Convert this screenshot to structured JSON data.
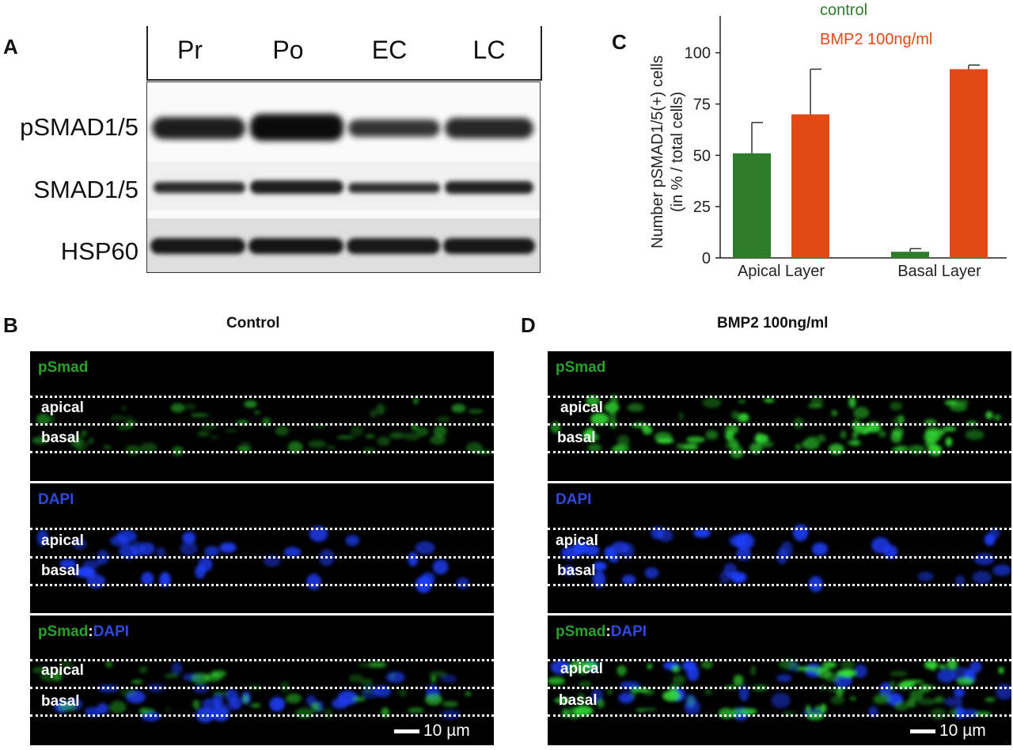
{
  "panels": {
    "a": {
      "letter": "A",
      "lanes": [
        "Pr",
        "Po",
        "EC",
        "LC"
      ],
      "rows": [
        "pSMAD1/5",
        "SMAD1/5",
        "HSP60"
      ]
    },
    "b": {
      "letter": "B",
      "title": "Control"
    },
    "c": {
      "letter": "C"
    },
    "d": {
      "letter": "D",
      "title": "BMP2 100ng/ml"
    }
  },
  "micro_labels": {
    "psmad": "pSmad",
    "dapi": "DAPI",
    "colon": ":",
    "apical": "apical",
    "basal": "basal",
    "scale": "10 µm"
  },
  "colors": {
    "control": "#2e7d2b",
    "bmp2": "#e04a14",
    "psmad_green": "#2aa12a",
    "dapi_blue": "#2f49e0"
  },
  "chart_data": {
    "type": "bar",
    "categories": [
      "Apical Layer",
      "Basal Layer"
    ],
    "series": [
      {
        "name": "control",
        "values": [
          51,
          3
        ],
        "errors": [
          15,
          1.5
        ],
        "color": "#2e7d2b"
      },
      {
        "name": "BMP2 100ng/ml",
        "values": [
          70,
          92
        ],
        "errors": [
          22,
          2
        ],
        "color": "#e04a14"
      }
    ],
    "ylabel_line1": "Number pSMAD1/5(+) cells",
    "ylabel_line2": "(in % / total cells)",
    "yticks": [
      0,
      25,
      50,
      75,
      100
    ],
    "ylim": [
      0,
      118
    ],
    "legend": "top-left",
    "grid": false
  }
}
